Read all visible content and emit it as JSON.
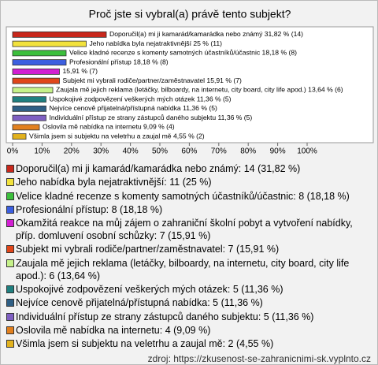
{
  "chart_data": {
    "type": "bar",
    "orientation": "horizontal",
    "title": "Proč jste si vybral(a) právě tento subjekt?",
    "categories": [
      "Doporučil(a) mi ji kamarád/kamarádka nebo známý",
      "Jeho nabídka byla nejatraktivnější",
      "Velice kladné recenze s komenty samotných účastníků/účastnic",
      "Profesionální přístup",
      "Okamžitá reakce na můj zájem o zahraniční školní pobyt a vytvoření nabídky, příp. domluvení osobní schůzky",
      "Subjekt mi vybrali rodiče/partner/zaměstnavatel",
      "Zaujala mě jejich reklama (letáčky, bilboardy, na internetu, city board, city life apod.)",
      "Uspokojivé zodpovězení veškerých mých otázek",
      "Nejvíce cenově přijatelná/přístupná nabídka",
      "Individuální přístup ze strany zástupců daného subjektu",
      "Oslovila mě nabídka na internetu",
      "Všimla jsem si subjektu na veletrhu a zaujal mě"
    ],
    "values": [
      31.82,
      25,
      18.18,
      18.18,
      15.91,
      15.91,
      13.64,
      11.36,
      11.36,
      11.36,
      9.09,
      4.55
    ],
    "value_labels": [
      "Doporučil(a) mi ji kamarád/kamarádka nebo známý 31,82 % (14)",
      "Jeho nabídka byla nejatraktivnější 25 % (11)",
      "Velice kladné recenze s komenty samotných účastníků/účastnic 18,18 % (8)",
      "Profesionální přístup 18,18 % (8)",
      "15,91 % (7)",
      "Subjekt mi vybrali rodiče/partner/zaměstnavatel 15,91 % (7)",
      "Zaujala mě jejich reklama (letáčky, bilboardy, na internetu, city board, city life apod.) 13,64 % (6)",
      "Uspokojivé zodpovězení veškerých mých otázek 11,36 % (5)",
      "Nejvíce cenově přijatelná/přístupná nabídka 11,36 % (5)",
      "Individuální přístup ze strany zástupců daného subjektu 11,36 % (5)",
      "Oslovila mě nabídka na internetu 9,09 % (4)",
      "Všimla jsem si subjektu na veletrhu a zaujal mě 4,55 % (2)"
    ],
    "legend_labels": [
      "Doporučil(a) mi ji kamarád/kamarádka nebo známý: 14 (31,82 %)",
      "Jeho nabídka byla nejatraktivnější: 11 (25 %)",
      "Velice kladné recenze s komenty samotných účastníků/účastnic: 8 (18,18 %)",
      "Profesionální přístup: 8 (18,18 %)",
      "Okamžitá reakce na můj zájem o zahraniční školní pobyt a vytvoření nabídky, příp. domluvení osobní schůzky: 7 (15,91 %)",
      "Subjekt mi vybrali rodiče/partner/zaměstnavatel: 7 (15,91 %)",
      "Zaujala mě jejich reklama (letáčky, bilboardy, na internetu, city board, city life apod.): 6 (13,64 %)",
      "Uspokojivé zodpovězení veškerých mých otázek: 5 (11,36 %)",
      "Nejvíce cenově přijatelná/přístupná nabídka: 5 (11,36 %)",
      "Individuální přístup ze strany zástupců daného subjektu: 5 (11,36 %)",
      "Oslovila mě nabídka na internetu: 4 (9,09 %)",
      "Všimla jsem si subjektu na veletrhu a zaujal mě: 2 (4,55 %)"
    ],
    "colors": [
      "#c8281c",
      "#f2e23c",
      "#3cbf3c",
      "#3c5fe0",
      "#d21fd2",
      "#e0461a",
      "#c6f28a",
      "#1f8080",
      "#2f5f85",
      "#7f5fc2",
      "#e2801e",
      "#e2b21e"
    ],
    "xlim": [
      0,
      100
    ],
    "xticks": [
      {
        "value": 0,
        "label": "0%"
      },
      {
        "value": 10,
        "label": "10%"
      },
      {
        "value": 20,
        "label": "20%"
      },
      {
        "value": 30,
        "label": "30%"
      },
      {
        "value": 40,
        "label": "40%"
      },
      {
        "value": 50,
        "label": "50%"
      },
      {
        "value": 60,
        "label": "60%"
      },
      {
        "value": 70,
        "label": "70%"
      },
      {
        "value": 80,
        "label": "80%"
      },
      {
        "value": 90,
        "label": "90%"
      },
      {
        "value": 100,
        "label": "100%"
      }
    ],
    "grid": false,
    "source": "zdroj: https://zkusenost-se-zahranicnimi-sk.vyplnto.cz"
  }
}
